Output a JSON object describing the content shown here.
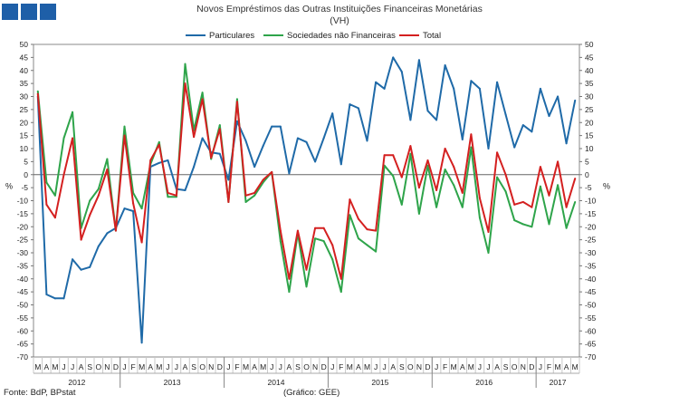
{
  "chart_data": {
    "type": "line",
    "title": "Novos Empréstimos das Outras Instituições Financeiras Monetárias",
    "subtitle": "(VH)",
    "ylabel_left": "%",
    "ylabel_right": "%",
    "ylim": [
      -70,
      50
    ],
    "yticks": [
      50,
      45,
      40,
      35,
      30,
      25,
      20,
      15,
      10,
      5,
      0,
      -5,
      -10,
      -15,
      -20,
      -25,
      -30,
      -35,
      -40,
      -45,
      -50,
      -55,
      -60,
      -65,
      -70
    ],
    "month_labels": [
      "M",
      "A",
      "M",
      "J",
      "J",
      "A",
      "S",
      "O",
      "N",
      "D",
      "J",
      "F",
      "M",
      "A",
      "M",
      "J",
      "J",
      "A",
      "S",
      "O",
      "N",
      "D",
      "J",
      "F",
      "M",
      "A",
      "M",
      "J",
      "J",
      "A",
      "S",
      "O",
      "N",
      "D",
      "J",
      "F",
      "M",
      "A",
      "M",
      "J",
      "J",
      "A",
      "S",
      "O",
      "N",
      "D",
      "J",
      "F",
      "M",
      "A",
      "M",
      "J",
      "J",
      "A",
      "S",
      "O",
      "N",
      "D",
      "J",
      "F",
      "M",
      "A",
      "M"
    ],
    "year_labels": [
      {
        "label": "2012",
        "start": 0,
        "end": 9
      },
      {
        "label": "2013",
        "start": 10,
        "end": 21
      },
      {
        "label": "2014",
        "start": 22,
        "end": 33
      },
      {
        "label": "2015",
        "start": 34,
        "end": 45
      },
      {
        "label": "2016",
        "start": 46,
        "end": 57
      },
      {
        "label": "2017",
        "start": 58,
        "end": 62
      }
    ],
    "series": [
      {
        "name": "Particulares",
        "color": "#1f6aa8",
        "values": [
          30,
          -46,
          -47.5,
          -47.5,
          -32.5,
          -36.5,
          -35.5,
          -27.5,
          -22.5,
          -20.5,
          -13,
          -14,
          -64.5,
          3,
          4.5,
          5.5,
          -5.5,
          -6,
          3,
          14,
          8.5,
          8,
          -2,
          20.5,
          13,
          3,
          11,
          18.5,
          18.5,
          0.5,
          14,
          12.5,
          5,
          14,
          23.5,
          4,
          27,
          25.5,
          13,
          35.5,
          33,
          45,
          39.5,
          21,
          44,
          24.5,
          21,
          42,
          33,
          13.5,
          36,
          33,
          10,
          35.5,
          23,
          10.5,
          19,
          16.5,
          33,
          22.5,
          30,
          12,
          28.5
        ]
      },
      {
        "name": "Sociedades não Financeiras",
        "color": "#2ea44a",
        "values": [
          32,
          -3,
          -8,
          14,
          24,
          -20.5,
          -10,
          -5.5,
          6,
          -21.5,
          18.5,
          -7,
          -13,
          4,
          12.5,
          -8.5,
          -8.5,
          42.5,
          17,
          31.5,
          6,
          19,
          -10.5,
          29,
          -10.5,
          -8,
          -3,
          1,
          -25.5,
          -45,
          -22.5,
          -43,
          -24.5,
          -25.5,
          -32.5,
          -45,
          -15.5,
          -24.5,
          -27,
          -29.5,
          3.5,
          -0.5,
          -11.5,
          8,
          -15,
          3.5,
          -12.5,
          2,
          -4,
          -12.5,
          10.5,
          -16.5,
          -30,
          -1,
          -6.5,
          -17.5,
          -19,
          -20,
          -4.5,
          -19,
          -4,
          -20.5,
          -10.5
        ]
      },
      {
        "name": "Total",
        "color": "#d42020",
        "values": [
          31,
          -11.5,
          -16.5,
          0,
          14,
          -25,
          -15.5,
          -8,
          2,
          -21.5,
          15,
          -11,
          -26,
          5.5,
          11.5,
          -7,
          -8,
          35,
          14.5,
          29,
          6.5,
          17.5,
          -10.5,
          28,
          -8,
          -7,
          -2,
          1,
          -21.5,
          -40,
          -21.5,
          -36.5,
          -20.5,
          -20.5,
          -27,
          -40,
          -9.5,
          -17,
          -21,
          -21.5,
          7.5,
          7.5,
          -1,
          11,
          -5,
          5.5,
          -6,
          10,
          3,
          -7,
          15.5,
          -9,
          -22,
          8.5,
          0,
          -11.5,
          -10.5,
          -12.5,
          3,
          -8,
          5,
          -12.5,
          -1.5
        ]
      }
    ]
  },
  "footer": {
    "source": "Fonte: BdP, BPstat",
    "credit": "(Gráfico: GEE)"
  }
}
